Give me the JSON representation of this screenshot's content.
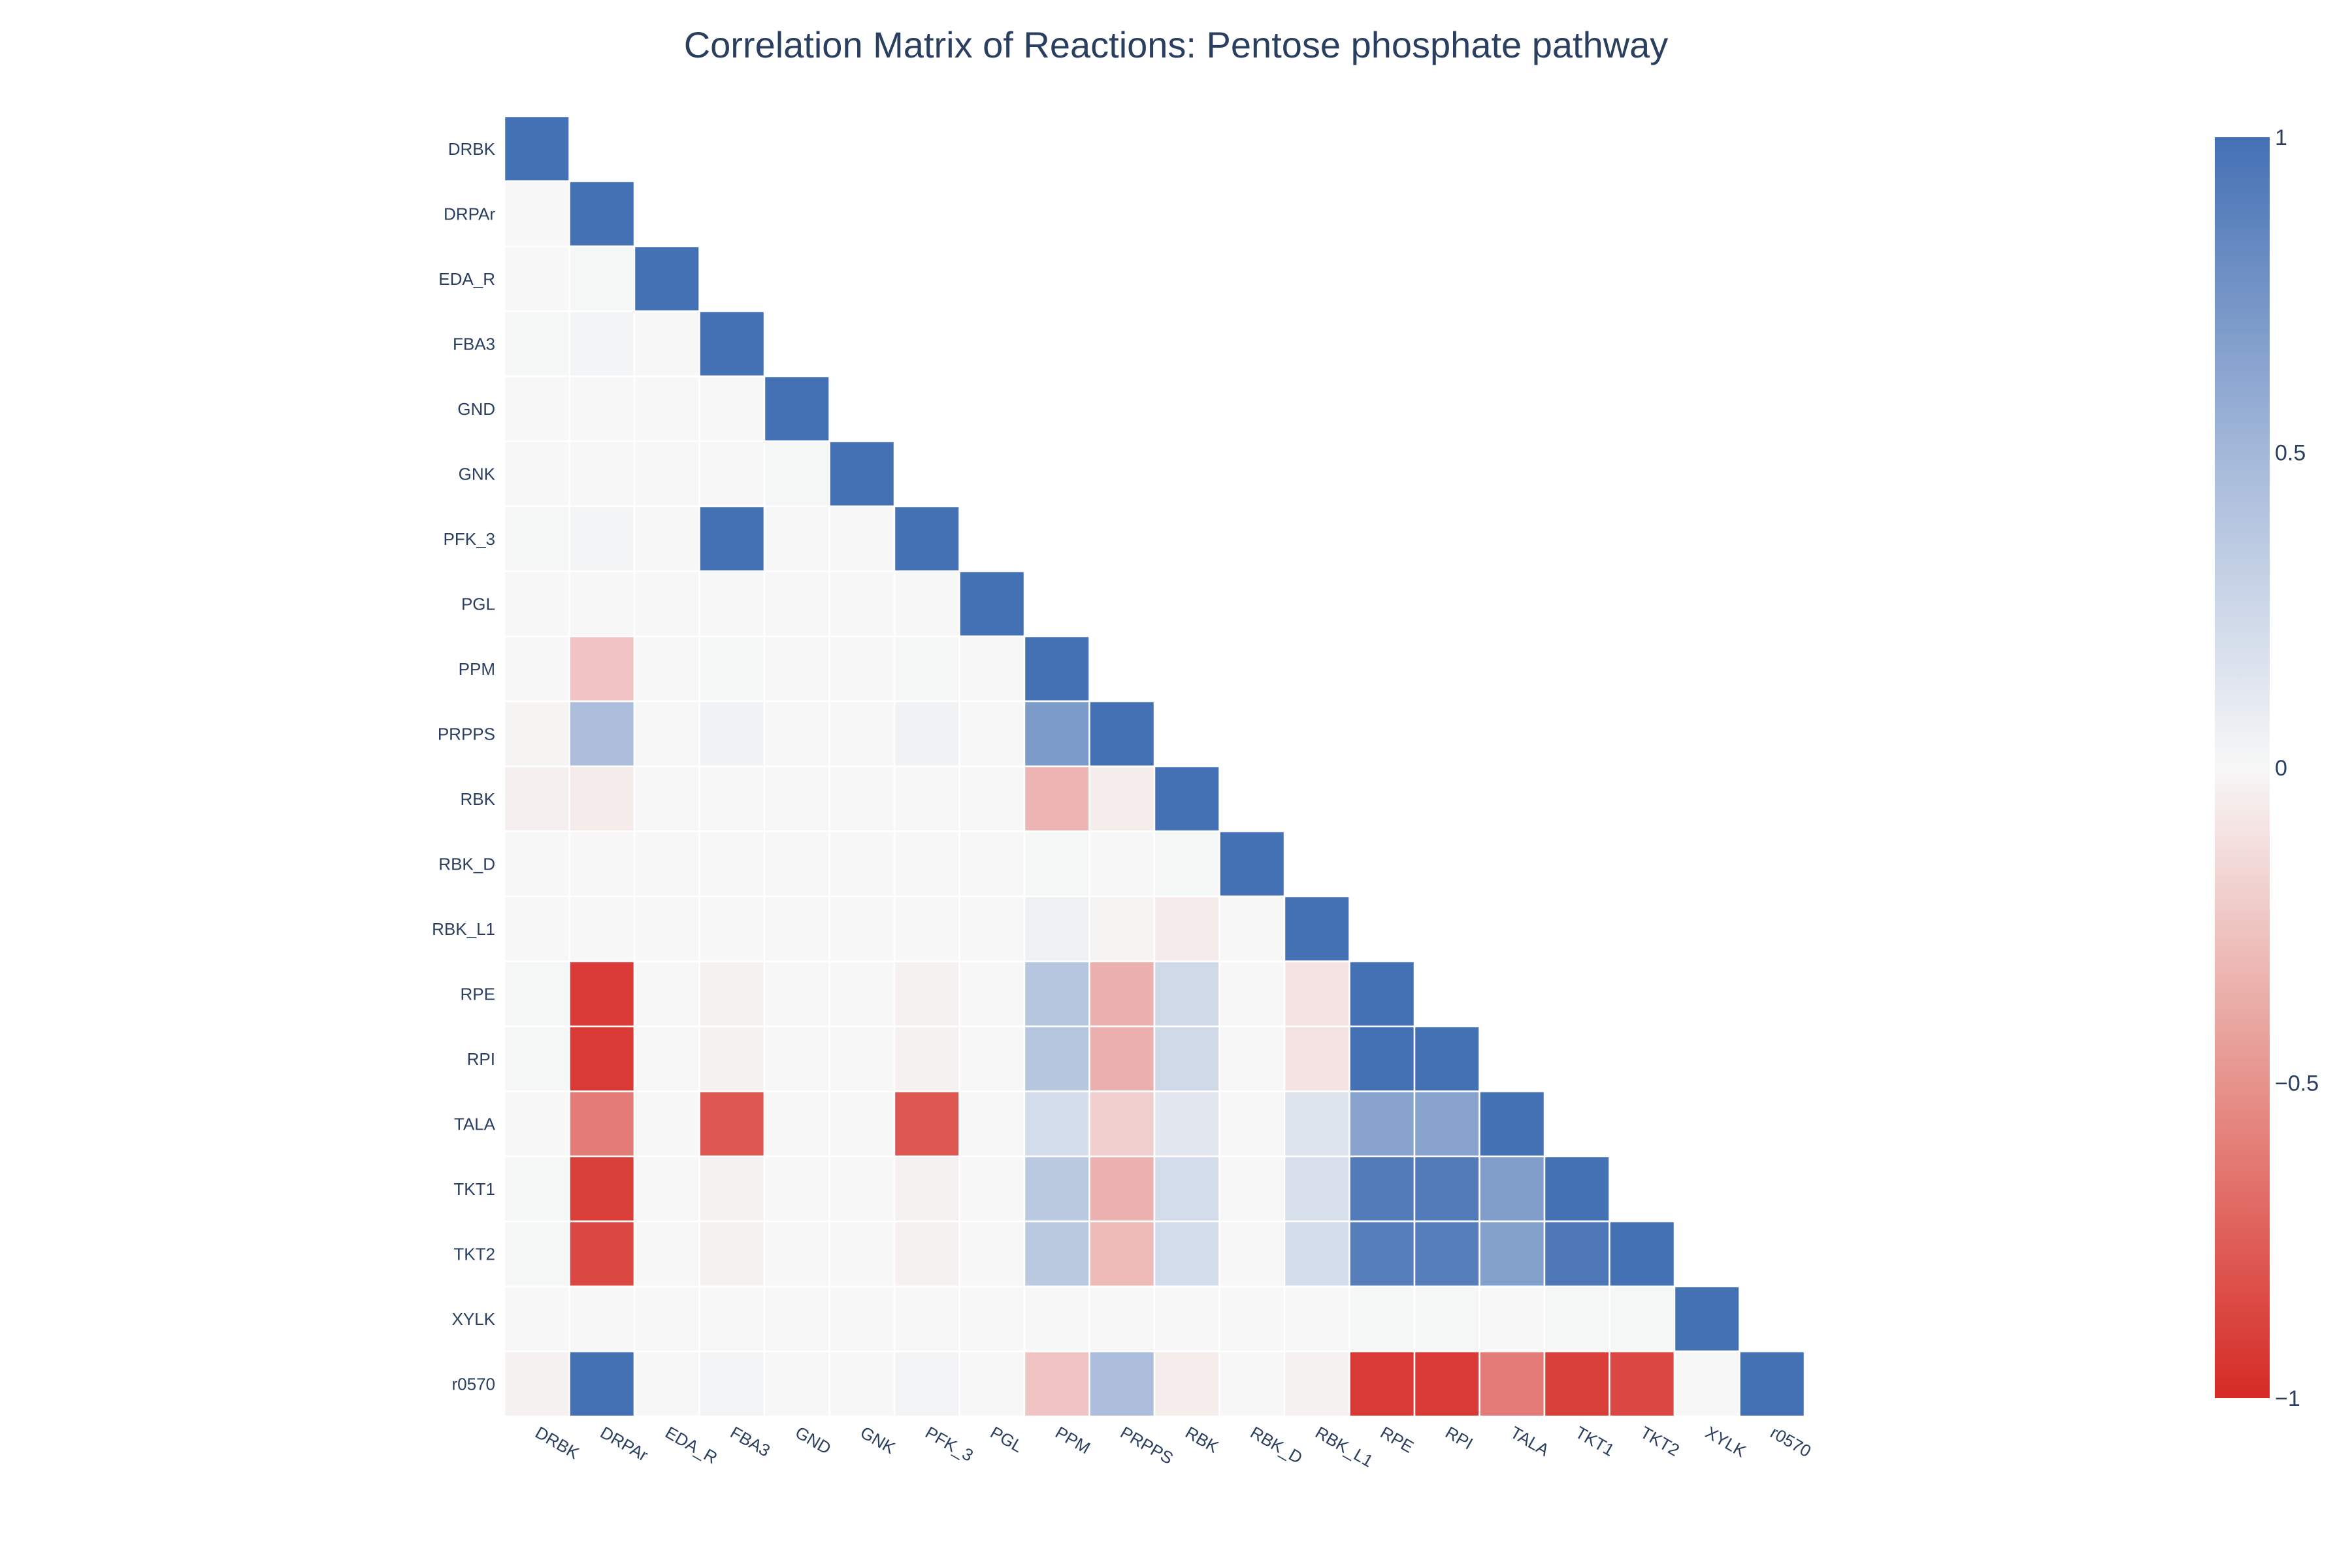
{
  "chart_data": {
    "type": "heatmap",
    "title": "Correlation Matrix of Reactions: Pentose phosphate pathway",
    "labels": [
      "DRBK",
      "DRPAr",
      "EDA_R",
      "FBA3",
      "GND",
      "GNK",
      "PFK_3",
      "PGL",
      "PPM",
      "PRPPS",
      "RBK",
      "RBK_D",
      "RBK_L1",
      "RPE",
      "RPI",
      "TALA",
      "TKT1",
      "TKT2",
      "XYLK",
      "r0570"
    ],
    "lower_triangle_only": true,
    "zmin": -1,
    "zmax": 1,
    "colorscale": [
      [
        0,
        "#d62a24"
      ],
      [
        0.5,
        "#f7f7f7"
      ],
      [
        1,
        "#4470b4"
      ]
    ],
    "colorbar_ticks": [
      {
        "value": 1,
        "label": "1"
      },
      {
        "value": 0.5,
        "label": "0.5"
      },
      {
        "value": 0,
        "label": "0"
      },
      {
        "value": -0.5,
        "label": "−0.5"
      },
      {
        "value": -1,
        "label": "−1"
      }
    ],
    "z": [
      [
        1
      ],
      [
        0,
        1
      ],
      [
        0,
        0.01,
        1
      ],
      [
        0.01,
        0.02,
        0,
        1
      ],
      [
        0,
        0,
        0,
        0,
        1
      ],
      [
        0,
        0,
        0,
        0,
        0.01,
        1
      ],
      [
        0.01,
        0.02,
        0,
        1,
        0,
        0,
        1
      ],
      [
        0,
        0,
        0,
        0,
        0,
        0,
        0,
        1
      ],
      [
        0,
        -0.25,
        0,
        0.01,
        0,
        0,
        0.01,
        0,
        1
      ],
      [
        -0.02,
        0.42,
        0,
        0.04,
        0,
        0,
        0.04,
        0,
        0.68,
        1
      ],
      [
        -0.04,
        -0.06,
        0,
        0,
        0,
        0,
        0,
        0,
        -0.32,
        -0.05,
        1
      ],
      [
        0,
        0,
        0,
        0,
        0,
        0,
        0,
        0,
        0.01,
        0,
        0.01,
        1
      ],
      [
        0,
        0,
        0,
        0,
        0,
        0,
        0,
        0,
        0.05,
        -0.02,
        -0.06,
        0,
        1
      ],
      [
        0.01,
        -0.92,
        0,
        -0.03,
        0,
        0,
        -0.03,
        0,
        0.36,
        -0.35,
        0.22,
        0,
        -0.1,
        1
      ],
      [
        0.01,
        -0.92,
        0,
        -0.03,
        0,
        0,
        -0.03,
        0,
        0.36,
        -0.35,
        0.22,
        0,
        -0.1,
        1,
        1
      ],
      [
        0,
        -0.6,
        0,
        -0.78,
        0,
        0,
        -0.78,
        0,
        0.2,
        -0.2,
        0.12,
        0,
        0.14,
        0.62,
        0.62,
        1
      ],
      [
        0.01,
        -0.9,
        0,
        -0.03,
        0,
        0,
        -0.03,
        0,
        0.34,
        -0.34,
        0.2,
        0,
        0.18,
        0.92,
        0.92,
        0.66,
        1
      ],
      [
        0.01,
        -0.86,
        0,
        -0.03,
        0,
        0,
        -0.03,
        0,
        0.34,
        -0.3,
        0.2,
        0,
        0.2,
        0.9,
        0.9,
        0.64,
        0.95,
        1
      ],
      [
        0,
        0,
        0,
        0,
        0,
        0,
        0,
        0,
        0,
        0,
        0,
        0,
        0,
        0.01,
        0.01,
        0,
        0.01,
        0.01,
        1
      ],
      [
        -0.03,
        1,
        0,
        0.02,
        0,
        0,
        0.02,
        0,
        -0.25,
        0.42,
        -0.05,
        0,
        -0.03,
        -0.92,
        -0.92,
        -0.6,
        -0.9,
        -0.86,
        0,
        1
      ]
    ]
  }
}
